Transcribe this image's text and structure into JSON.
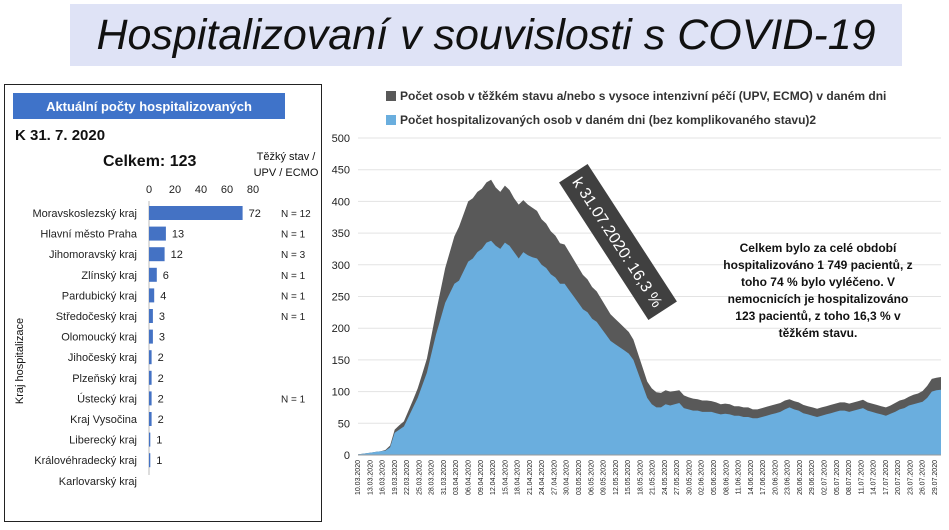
{
  "title": "Hospitalizovaní v souvislosti s COVID-19",
  "left_panel": {
    "header": "Aktuální počty hospitalizovaných",
    "date": "K 31. 7. 2020",
    "total": "Celkem: 123",
    "severe_header_line1": "Těžký stav /",
    "severe_header_line2": "UPV / ECMO",
    "y_axis_title": "Kraj hospitalizace"
  },
  "area_chart": {
    "legend_dark": "Počet osob v těžkém stavu a/nebo s vysoce intenzivní péčí (UPV, ECMO) v daném dni",
    "legend_light": "Počet hospitalizovaných osob v daném dni (bez komplikovaného stavu)2",
    "annotation": "k 31.07.2020: 16,3 %",
    "summary": "Celkem bylo za celé období hospitalizováno 1 749 pacientů, z toho 74 % bylo vyléčeno. V nemocnicích je hospitalizováno 123 pacientů, z toho 16,3 % v těžkém stavu."
  },
  "colors": {
    "bar": "#4472c4",
    "header": "#3f73c9",
    "light_area": "#6aaede",
    "dark_area": "#595959",
    "title_band": "#dfe3f6"
  },
  "chart_data": [
    {
      "type": "bar",
      "orientation": "horizontal",
      "xlim": [
        0,
        80
      ],
      "xticks": [
        0,
        20,
        40,
        60,
        80
      ],
      "categories": [
        "Moravskoslezský kraj",
        "Hlavní město Praha",
        "Jihomoravský kraj",
        "Zlínský kraj",
        "Pardubický kraj",
        "Středočeský kraj",
        "Olomoucký kraj",
        "Jihočeský kraj",
        "Plzeňský kraj",
        "Ústecký kraj",
        "Kraj Vysočina",
        "Liberecký kraj",
        "Královéhradecký kraj",
        "Karlovarský kraj"
      ],
      "values": [
        72,
        13,
        12,
        6,
        4,
        3,
        3,
        2,
        2,
        2,
        2,
        1,
        1,
        0
      ],
      "value_labels": [
        "72",
        "13",
        "12",
        "6",
        "4",
        "3",
        "3",
        "2",
        "2",
        "2",
        "2",
        "1",
        "1",
        ""
      ],
      "severe_labels": [
        "N = 12",
        "N = 1",
        "N = 3",
        "N = 1",
        "N = 1",
        "N = 1",
        "",
        "",
        "",
        "N = 1",
        "",
        "",
        "",
        ""
      ]
    },
    {
      "type": "area",
      "stacked": true,
      "ylim": [
        0,
        500
      ],
      "yticks": [
        0,
        50,
        100,
        150,
        200,
        250,
        300,
        350,
        400,
        450,
        500
      ],
      "x_tick_labels": [
        "10.03.2020",
        "13.03.2020",
        "16.03.2020",
        "19.03.2020",
        "22.03.2020",
        "25.03.2020",
        "28.03.2020",
        "31.03.2020",
        "03.04.2020",
        "06.04.2020",
        "09.04.2020",
        "12.04.2020",
        "15.04.2020",
        "18.04.2020",
        "21.04.2020",
        "24.04.2020",
        "27.04.2020",
        "30.04.2020",
        "03.05.2020",
        "06.05.2020",
        "09.05.2020",
        "12.05.2020",
        "15.05.2020",
        "18.05.2020",
        "21.05.2020",
        "24.05.2020",
        "27.05.2020",
        "30.05.2020",
        "02.06.2020",
        "05.06.2020",
        "08.06.2020",
        "11.06.2020",
        "14.06.2020",
        "17.06.2020",
        "20.06.2020",
        "23.06.2020",
        "26.06.2020",
        "29.06.2020",
        "02.07.2020",
        "05.07.2020",
        "08.07.2020",
        "11.07.2020",
        "14.07.2020",
        "17.07.2020",
        "20.07.2020",
        "23.07.2020",
        "26.07.2020",
        "29.07.2020"
      ],
      "series": [
        {
          "name": "Počet hospitalizovaných osob v daném dni (bez komplikovaného stavu)2",
          "values": [
            1,
            2,
            3,
            4,
            5,
            6,
            7,
            12,
            35,
            40,
            45,
            60,
            75,
            90,
            110,
            130,
            160,
            190,
            215,
            240,
            255,
            270,
            275,
            290,
            305,
            310,
            320,
            325,
            335,
            338,
            330,
            325,
            335,
            330,
            320,
            310,
            320,
            315,
            312,
            310,
            300,
            295,
            285,
            280,
            270,
            270,
            260,
            250,
            240,
            230,
            225,
            215,
            210,
            200,
            190,
            180,
            175,
            170,
            165,
            160,
            150,
            130,
            110,
            90,
            80,
            75,
            75,
            80,
            78,
            80,
            82,
            74,
            72,
            70,
            70,
            68,
            68,
            68,
            66,
            64,
            65,
            64,
            62,
            62,
            60,
            60,
            58,
            58,
            60,
            62,
            64,
            66,
            68,
            72,
            75,
            72,
            70,
            66,
            64,
            62,
            60,
            62,
            64,
            66,
            68,
            70,
            70,
            68,
            70,
            72,
            74,
            70,
            68,
            66,
            64,
            62,
            65,
            68,
            72,
            74,
            78,
            80,
            82,
            84,
            90,
            100,
            102,
            103
          ]
        },
        {
          "name": "Počet osob v těžkém stavu a/nebo s vysoce intenzivní péčí (UPV, ECMO) v daném dni",
          "values": [
            0,
            0,
            0,
            0,
            0,
            0,
            1,
            3,
            5,
            7,
            8,
            10,
            12,
            15,
            18,
            22,
            28,
            35,
            45,
            55,
            65,
            75,
            85,
            90,
            95,
            95,
            95,
            95,
            95,
            96,
            92,
            90,
            90,
            88,
            85,
            85,
            82,
            80,
            78,
            75,
            72,
            70,
            68,
            66,
            64,
            62,
            60,
            58,
            56,
            54,
            52,
            50,
            48,
            46,
            44,
            42,
            40,
            38,
            36,
            34,
            32,
            30,
            28,
            26,
            25,
            24,
            23,
            22,
            22,
            21,
            20,
            20,
            19,
            19,
            18,
            18,
            18,
            17,
            17,
            16,
            16,
            16,
            15,
            15,
            15,
            15,
            14,
            14,
            14,
            14,
            14,
            14,
            14,
            14,
            13,
            13,
            13,
            13,
            13,
            13,
            13,
            13,
            13,
            13,
            13,
            13,
            13,
            13,
            13,
            13,
            13,
            13,
            13,
            13,
            13,
            13,
            13,
            14,
            14,
            14,
            14,
            15,
            15,
            17,
            19,
            20,
            20,
            20
          ]
        }
      ]
    }
  ]
}
